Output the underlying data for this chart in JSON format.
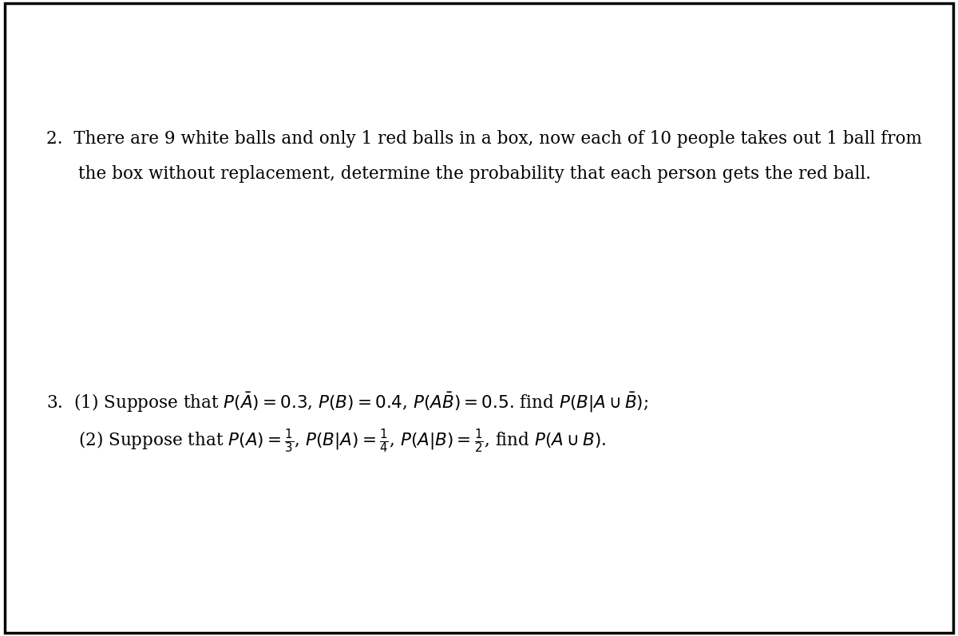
{
  "background_color": "#ffffff",
  "border_color": "#000000",
  "figsize": [
    12.0,
    7.97
  ],
  "dpi": 100,
  "line2_text": "2.  There are 9 white balls and only 1 red balls in a box, now each of 10 people takes out 1 ball from",
  "line2b_text": "the box without replacement, determine the probability that each person gets the red ball.",
  "line3_text": "3.  (1) Suppose that $P(\\bar{A}) = 0.3$, $P(B) = 0.4$, $P(A\\bar{B}) = 0.5$. find $P(B|A \\cup \\bar{B})$;",
  "line3b_text": "(2) Suppose that $P(A) = \\frac{1}{3}$, $P(B|A) = \\frac{1}{4}$, $P(A|B) = \\frac{1}{2}$, find $P(A \\cup B)$.",
  "fontsize": 15.5,
  "text_color": "#000000",
  "border_linewidth": 2.5
}
